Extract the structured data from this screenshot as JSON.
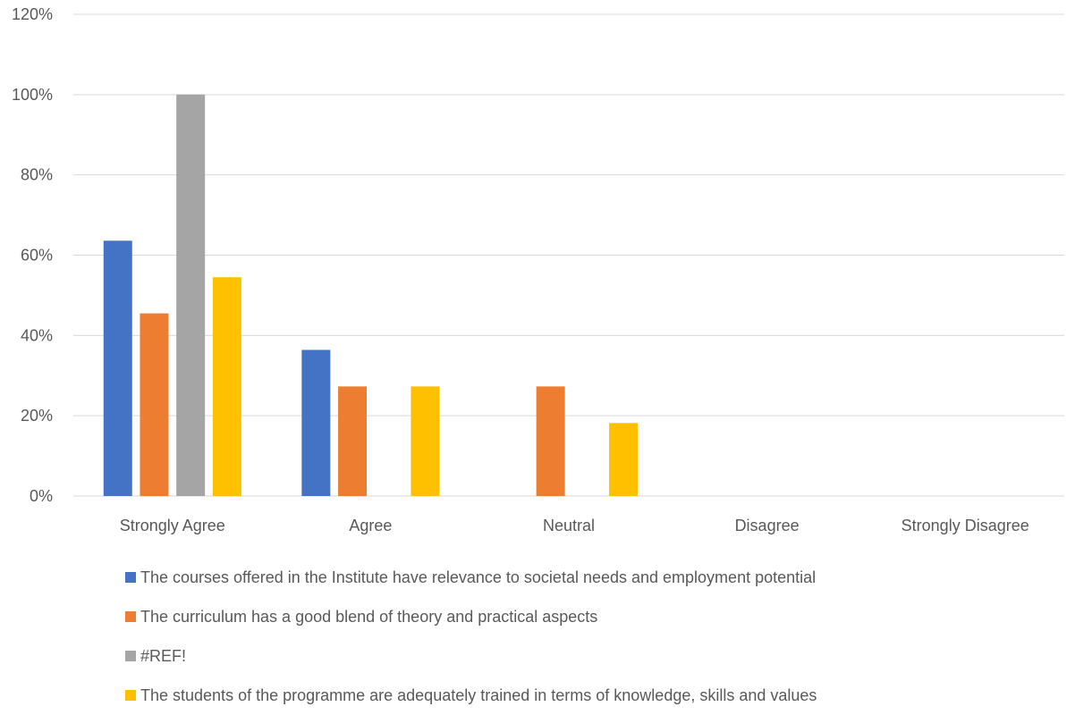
{
  "chart_data": {
    "type": "bar",
    "title": "",
    "xlabel": "",
    "ylabel": "",
    "categories": [
      "Strongly Agree",
      "Agree",
      "Neutral",
      "Disagree",
      "Strongly Disagree"
    ],
    "series": [
      {
        "name": "The courses offered in the Institute have relevance to societal needs and employment potential",
        "color": "#4472C4",
        "values": [
          63.6,
          36.4,
          0,
          0,
          0
        ]
      },
      {
        "name": "The curriculum has a good blend of theory and practical aspects",
        "color": "#ED7D31",
        "values": [
          45.5,
          27.3,
          27.3,
          0,
          0
        ]
      },
      {
        "name": "#REF!",
        "color": "#A5A5A5",
        "values": [
          100,
          0,
          0,
          0,
          0
        ]
      },
      {
        "name": "The students of the programme are adequately trained in terms of knowledge, skills and values",
        "color": "#FFC000",
        "values": [
          54.5,
          27.3,
          18.2,
          0,
          0
        ]
      }
    ],
    "ylim": [
      0,
      120
    ],
    "yticks": [
      0,
      20,
      40,
      60,
      80,
      100,
      120
    ],
    "ytick_labels": [
      "0%",
      "20%",
      "40%",
      "60%",
      "80%",
      "100%",
      "120%"
    ],
    "grid": true,
    "legend_position": "bottom"
  }
}
